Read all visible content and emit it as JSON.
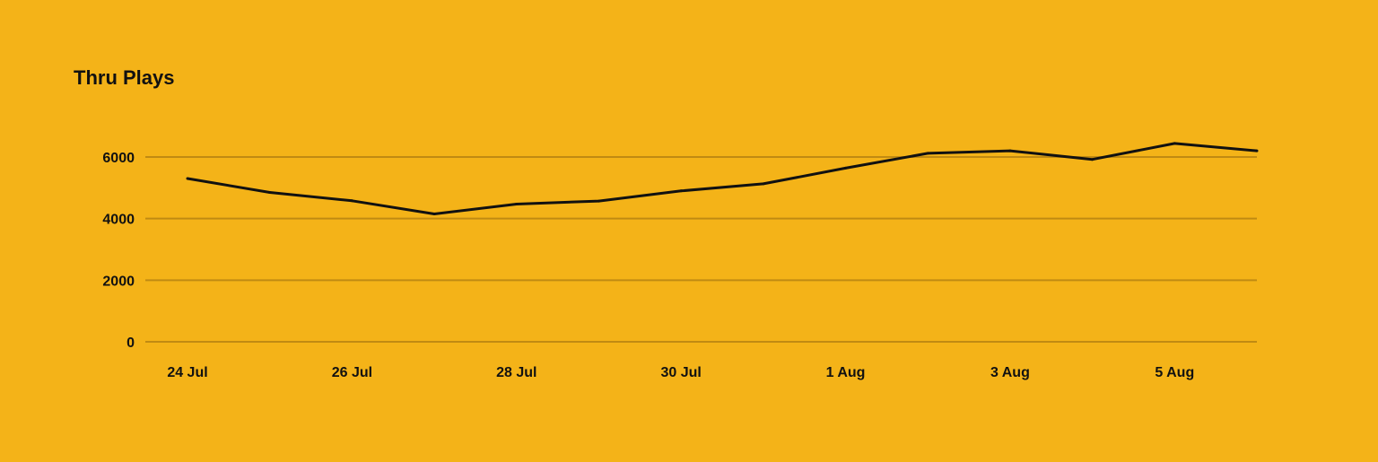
{
  "chart_data": {
    "type": "line",
    "title": "Thru Plays",
    "xlabel": "",
    "ylabel": "",
    "x": [
      "24 Jul",
      "25 Jul",
      "26 Jul",
      "27 Jul",
      "28 Jul",
      "29 Jul",
      "30 Jul",
      "31 Jul",
      "1 Aug",
      "2 Aug",
      "3 Aug",
      "4 Aug",
      "5 Aug",
      "6 Aug"
    ],
    "x_tick_labels": [
      "24 Jul",
      "26 Jul",
      "28 Jul",
      "30 Jul",
      "1 Aug",
      "3 Aug",
      "5 Aug"
    ],
    "y_ticks": [
      0,
      2000,
      4000,
      6000
    ],
    "ylim": [
      0,
      6000
    ],
    "grid": true,
    "series": [
      {
        "values": [
          5300,
          4850,
          4580,
          4150,
          4470,
          4570,
          4900,
          5130,
          5640,
          6120,
          6200,
          5920,
          6440,
          6200
        ]
      }
    ],
    "colors": {
      "background": "#F4B318",
      "line": "#111111",
      "grid": "#C08A12",
      "text": "#111111"
    }
  }
}
